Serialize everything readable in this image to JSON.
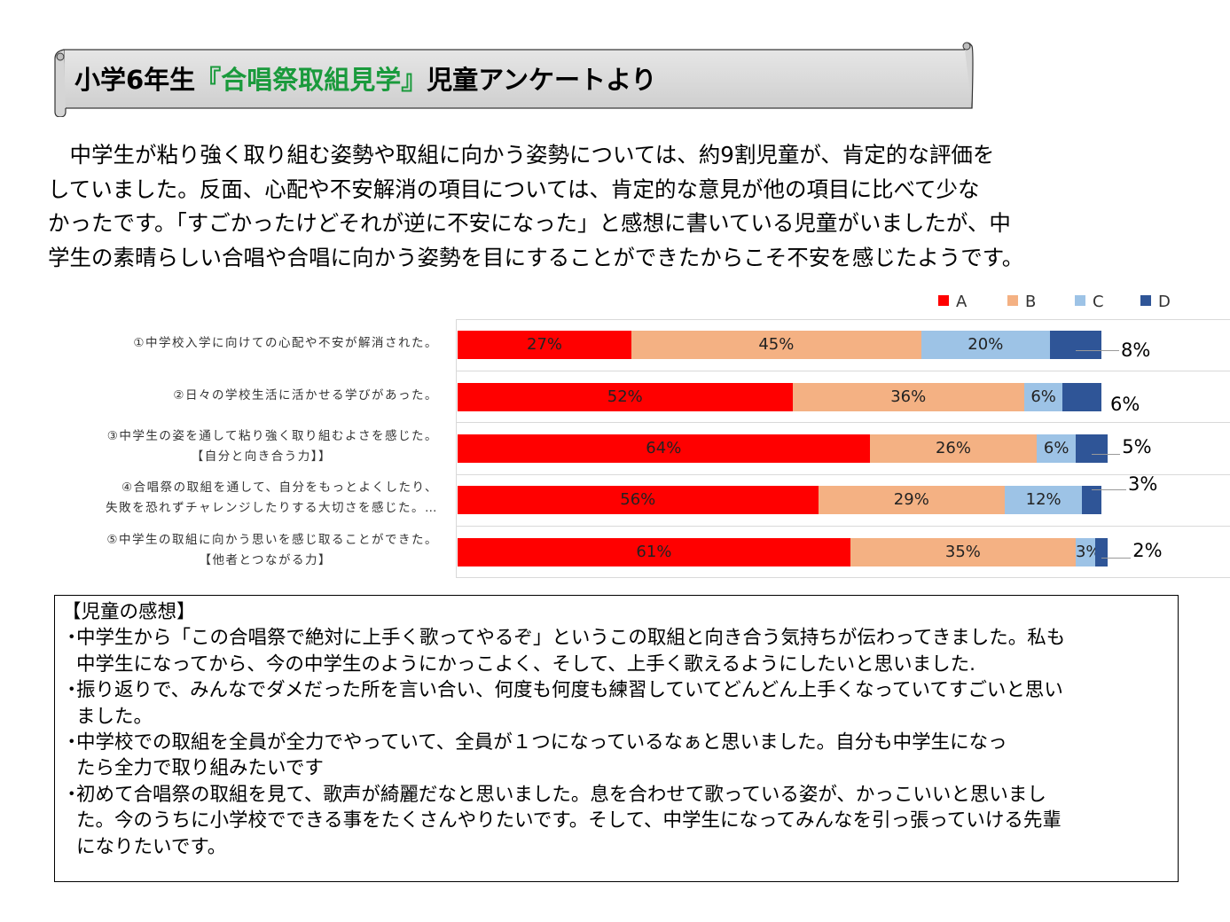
{
  "banner": {
    "title_pre": "小学6年生",
    "title_highlight": "『合唱祭取組見学』",
    "title_post": "児童アンケートより"
  },
  "intro": {
    "lines": [
      "　中学生が粘り強く取り組む姿勢や取組に向かう姿勢については、約9割児童が、肯定的な評価を",
      "していました。反面、心配や不安解消の項目については、肯定的な意見が他の項目に比べて少な",
      "かったです。「すごかったけどそれが逆に不安になった」と感想に書いている児童がいましたが、中",
      "学生の素晴らしい合唱や合唱に向かう姿勢を目にすることができたからこそ不安を感じたようです。"
    ]
  },
  "chart_data": {
    "type": "bar",
    "orientation": "horizontal",
    "stacked": true,
    "categories": [
      [
        "①中学校入学に向けての心配や不安が解消された。"
      ],
      [
        "②日々の学校生活に活かせる学びがあった。"
      ],
      [
        "③中学生の姿を通して粘り強く取り組むよさを感じた。",
        "【自分と向き合う力】】"
      ],
      [
        "④合唱祭の取組を通して、自分をもっとよくしたり、",
        "失敗を恐れずチャレンジしたりする大切さを感じた。…"
      ],
      [
        "⑤中学生の取組に向かう思いを感じ取ることができた。",
        "【他者とつながる力】"
      ]
    ],
    "series": [
      {
        "name": "A",
        "color": "#ff0000",
        "values": [
          27,
          52,
          64,
          56,
          61
        ]
      },
      {
        "name": "B",
        "color": "#f4b183",
        "values": [
          45,
          36,
          26,
          29,
          35
        ]
      },
      {
        "name": "C",
        "color": "#9dc3e6",
        "values": [
          20,
          6,
          6,
          12,
          3
        ]
      },
      {
        "name": "D",
        "color": "#2f5597",
        "values": [
          8,
          6,
          5,
          3,
          2
        ]
      }
    ],
    "data_labels": [
      [
        "27%",
        "45%",
        "20%",
        "8%"
      ],
      [
        "52%",
        "36%",
        "6%",
        "6%"
      ],
      [
        "64%",
        "26%",
        "6%",
        "5%"
      ],
      [
        "56%",
        "29%",
        "12%",
        "3%"
      ],
      [
        "61%",
        "35%",
        "3%",
        "2%"
      ]
    ],
    "legend_position": "top-right",
    "xlim": [
      0,
      100
    ]
  },
  "comments": {
    "heading": "【児童の感想】",
    "bullet": "・",
    "items": [
      [
        "中学生から「この合唱祭で絶対に上手く歌ってやるぞ」というこの取組と向き合う気持ちが伝わってきました。私も",
        "中学生になってから、今の中学生のようにかっこよく、そして、上手く歌えるようにしたいと思いました."
      ],
      [
        "振り返りで、みんなでダメだった所を言い合い、何度も何度も練習していてどんどん上手くなっていてすごいと思い",
        "ました。"
      ],
      [
        "中学校での取組を全員が全力でやっていて、全員が１つになっているなぁと思いました。自分も中学生になっ",
        "たら全力で取り組みたいです"
      ],
      [
        "初めて合唱祭の取組を見て、歌声が綺麗だなと思いました。息を合わせて歌っている姿が、かっこいいと思いまし",
        "た。今のうちに小学校でできる事をたくさんやりたいです。そして、中学生になってみんなを引っ張っていける先輩",
        "になりたいです。"
      ]
    ]
  }
}
